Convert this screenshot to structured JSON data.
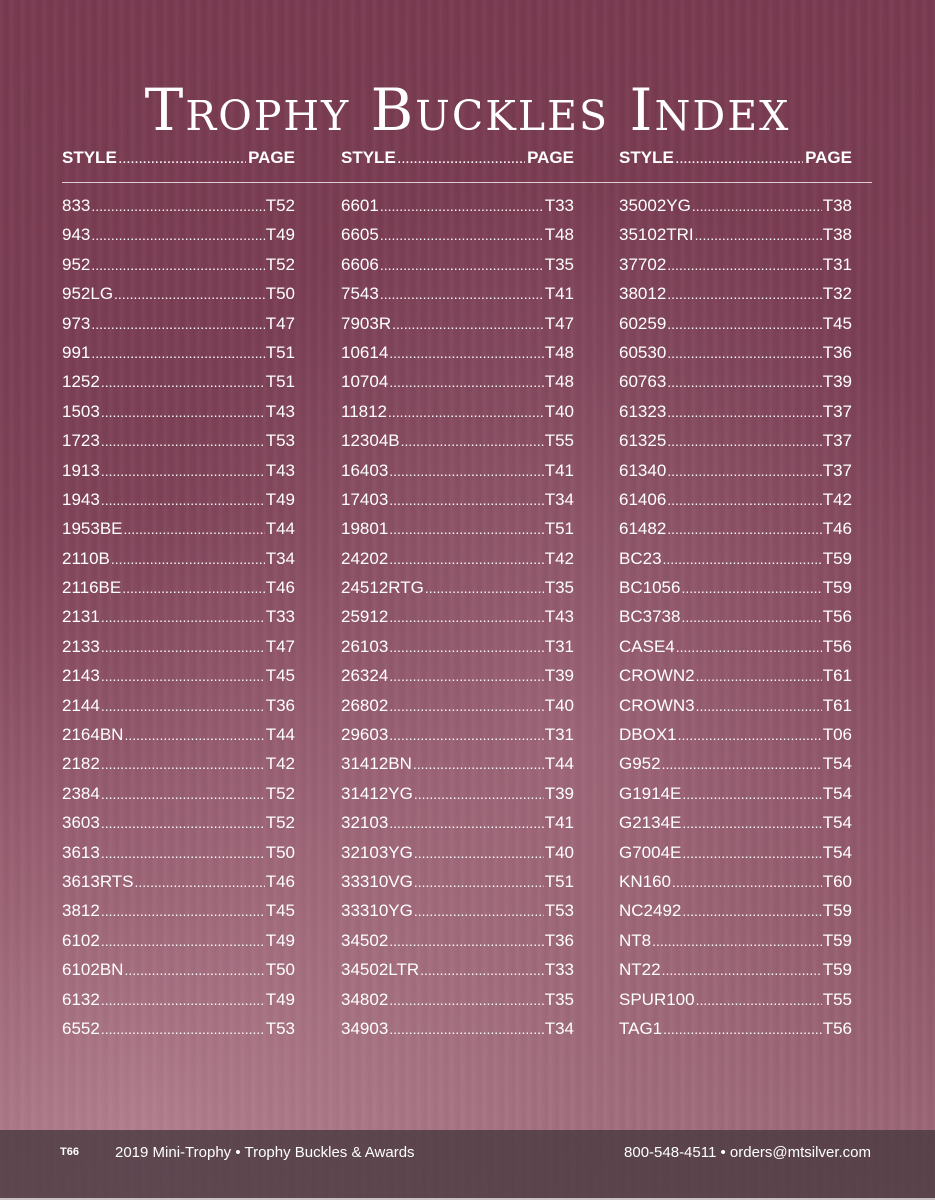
{
  "title": "Trophy Buckles Index",
  "column_header": {
    "style_label": "STYLE",
    "page_label": "PAGE"
  },
  "columns": [
    [
      {
        "style": "833",
        "page": "T52"
      },
      {
        "style": "943",
        "page": "T49"
      },
      {
        "style": "952",
        "page": "T52"
      },
      {
        "style": "952LG",
        "page": "T50"
      },
      {
        "style": "973",
        "page": "T47"
      },
      {
        "style": "991",
        "page": "T51"
      },
      {
        "style": "1252",
        "page": "T51"
      },
      {
        "style": "1503",
        "page": "T43"
      },
      {
        "style": "1723",
        "page": "T53"
      },
      {
        "style": "1913",
        "page": "T43"
      },
      {
        "style": "1943",
        "page": "T49"
      },
      {
        "style": "1953BE",
        "page": "T44"
      },
      {
        "style": "2110B",
        "page": "T34"
      },
      {
        "style": "2116BE",
        "page": "T46"
      },
      {
        "style": "2131",
        "page": "T33"
      },
      {
        "style": "2133",
        "page": "T47"
      },
      {
        "style": "2143",
        "page": "T45"
      },
      {
        "style": "2144",
        "page": "T36"
      },
      {
        "style": "2164BN",
        "page": "T44"
      },
      {
        "style": "2182",
        "page": "T42"
      },
      {
        "style": "2384",
        "page": "T52"
      },
      {
        "style": "3603",
        "page": "T52"
      },
      {
        "style": "3613",
        "page": "T50"
      },
      {
        "style": "3613RTS",
        "page": "T46"
      },
      {
        "style": "3812",
        "page": "T45"
      },
      {
        "style": "6102",
        "page": "T49"
      },
      {
        "style": "6102BN",
        "page": "T50"
      },
      {
        "style": "6132",
        "page": "T49"
      },
      {
        "style": "6552",
        "page": "T53"
      }
    ],
    [
      {
        "style": "6601",
        "page": "T33"
      },
      {
        "style": "6605",
        "page": "T48"
      },
      {
        "style": "6606",
        "page": "T35"
      },
      {
        "style": "7543",
        "page": "T41"
      },
      {
        "style": "7903R",
        "page": "T47"
      },
      {
        "style": "10614",
        "page": "T48"
      },
      {
        "style": "10704",
        "page": "T48"
      },
      {
        "style": "11812",
        "page": "T40"
      },
      {
        "style": "12304B",
        "page": "T55"
      },
      {
        "style": "16403",
        "page": "T41"
      },
      {
        "style": "17403",
        "page": "T34"
      },
      {
        "style": "19801",
        "page": "T51"
      },
      {
        "style": "24202",
        "page": "T42"
      },
      {
        "style": "24512RTG",
        "page": "T35"
      },
      {
        "style": "25912",
        "page": "T43"
      },
      {
        "style": "26103",
        "page": "T31"
      },
      {
        "style": "26324",
        "page": "T39"
      },
      {
        "style": "26802",
        "page": "T40"
      },
      {
        "style": "29603",
        "page": "T31"
      },
      {
        "style": "31412BN",
        "page": "T44"
      },
      {
        "style": "31412YG",
        "page": "T39"
      },
      {
        "style": "32103",
        "page": "T41"
      },
      {
        "style": "32103YG",
        "page": "T40"
      },
      {
        "style": "33310VG",
        "page": "T51"
      },
      {
        "style": "33310YG",
        "page": "T53"
      },
      {
        "style": "34502",
        "page": "T36"
      },
      {
        "style": "34502LTR",
        "page": "T33"
      },
      {
        "style": "34802",
        "page": "T35"
      },
      {
        "style": "34903",
        "page": "T34"
      }
    ],
    [
      {
        "style": "35002YG",
        "page": "T38"
      },
      {
        "style": "35102TRI",
        "page": "T38"
      },
      {
        "style": "37702",
        "page": "T31"
      },
      {
        "style": "38012",
        "page": "T32"
      },
      {
        "style": "60259",
        "page": "T45"
      },
      {
        "style": "60530",
        "page": "T36"
      },
      {
        "style": "60763",
        "page": "T39"
      },
      {
        "style": "61323",
        "page": "T37"
      },
      {
        "style": "61325",
        "page": "T37"
      },
      {
        "style": "61340",
        "page": "T37"
      },
      {
        "style": "61406",
        "page": "T42"
      },
      {
        "style": "61482",
        "page": "T46"
      },
      {
        "style": "BC23",
        "page": "T59"
      },
      {
        "style": "BC1056",
        "page": "T59"
      },
      {
        "style": "BC3738",
        "page": "T56"
      },
      {
        "style": "CASE4",
        "page": "T56"
      },
      {
        "style": "CROWN2",
        "page": "T61"
      },
      {
        "style": "CROWN3",
        "page": "T61"
      },
      {
        "style": "DBOX1",
        "page": "T06"
      },
      {
        "style": "G952",
        "page": "T54"
      },
      {
        "style": "G1914E",
        "page": "T54"
      },
      {
        "style": "G2134E",
        "page": "T54"
      },
      {
        "style": "G7004E",
        "page": "T54"
      },
      {
        "style": "KN160",
        "page": "T60"
      },
      {
        "style": "NC2492",
        "page": "T59"
      },
      {
        "style": "NT8",
        "page": "T59"
      },
      {
        "style": "NT22",
        "page": "T59"
      },
      {
        "style": "SPUR100",
        "page": "T55"
      },
      {
        "style": "TAG1",
        "page": "T56"
      }
    ]
  ],
  "footer": {
    "page_number": "T66",
    "catalog_title": "2019 Mini-Trophy • Trophy Buckles & Awards",
    "contact": "800-548-4511 • orders@mtsilver.com"
  }
}
